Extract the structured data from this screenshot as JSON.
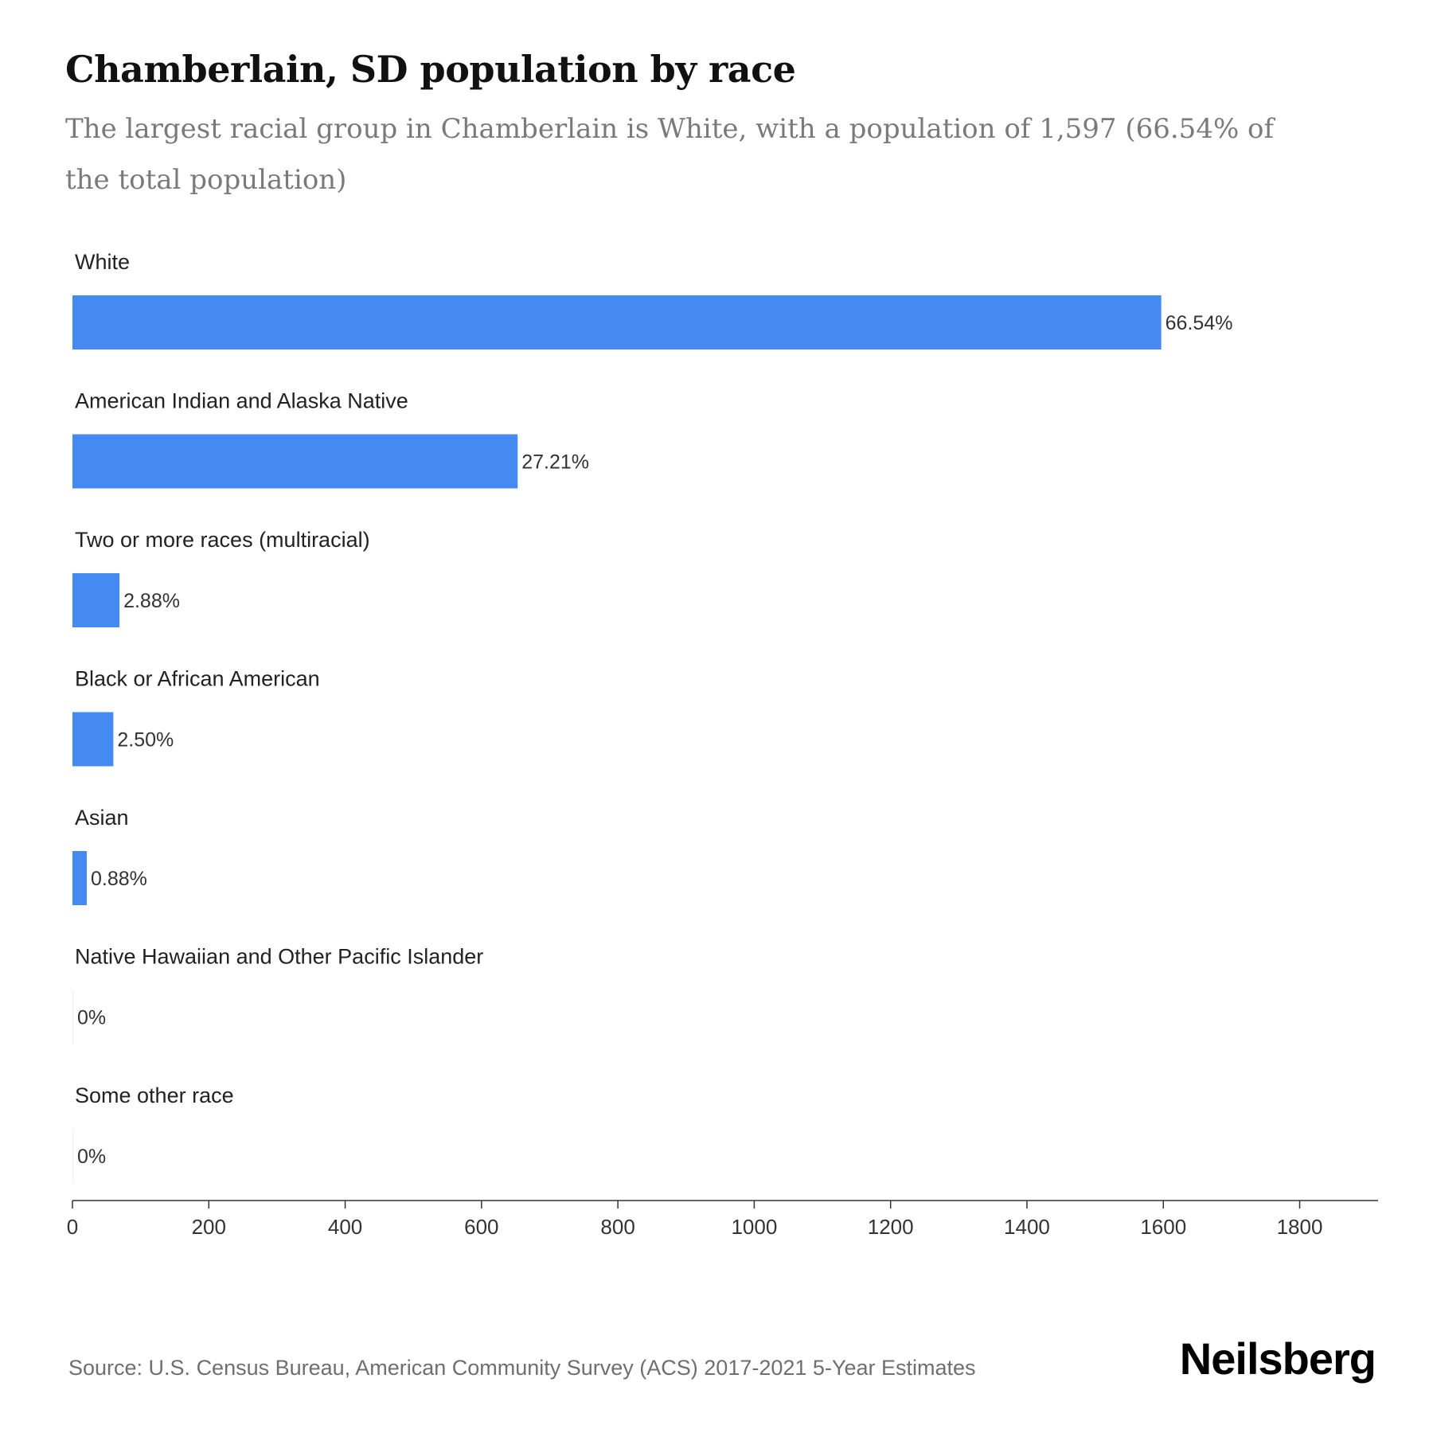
{
  "header": {
    "title": "Chamberlain, SD population by race",
    "subtitle": "The largest racial group in Chamberlain is White, with a population of 1,597 (66.54% of the total population)"
  },
  "footer": {
    "source": "Source: U.S. Census Bureau, American Community Survey (ACS) 2017-2021 5-Year Estimates",
    "brand": "Neilsberg"
  },
  "chart_data": {
    "type": "bar",
    "orientation": "horizontal",
    "title": "Chamberlain, SD population by race",
    "subtitle": "The largest racial group in Chamberlain is White, with a population of 1,597 (66.54% of the total population)",
    "categories": [
      "White",
      "American Indian and Alaska Native",
      "Two or more races (multiracial)",
      "Black or African American",
      "Asian",
      "Native Hawaiian and Other Pacific Islander",
      "Some other race"
    ],
    "values": [
      1597,
      653,
      69,
      60,
      21,
      0,
      0
    ],
    "data_labels": [
      "66.54%",
      "27.21%",
      "2.88%",
      "2.50%",
      "0.88%",
      "0%",
      "0%"
    ],
    "x_ticks": [
      0,
      200,
      400,
      600,
      800,
      1000,
      1200,
      1400,
      1600,
      1800
    ],
    "xlim": [
      0,
      1915
    ],
    "grid": false,
    "legend": "none",
    "bar_color": "#4589f3"
  }
}
